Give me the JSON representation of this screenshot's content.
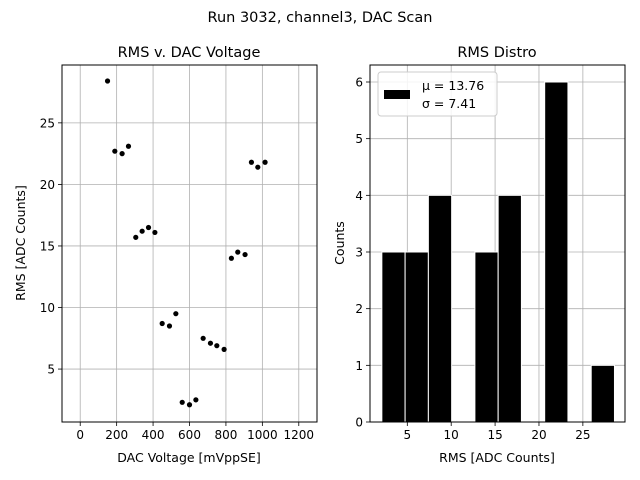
{
  "figure_title": "Run 3032, channel3, DAC Scan",
  "chart_data": [
    {
      "type": "scatter",
      "title": "RMS v. DAC Voltage",
      "xlabel": "DAC Voltage [mVppSE]",
      "ylabel": "RMS [ADC Counts]",
      "xlim": [
        -100,
        1300
      ],
      "ylim": [
        0.7,
        29.7
      ],
      "xticks": [
        0,
        200,
        400,
        600,
        800,
        1000,
        1200
      ],
      "yticks": [
        5,
        10,
        15,
        20,
        25
      ],
      "grid": true,
      "marker_color": "#000000",
      "points": [
        {
          "x": 150,
          "y": 28.4
        },
        {
          "x": 190,
          "y": 22.7
        },
        {
          "x": 230,
          "y": 22.5
        },
        {
          "x": 265,
          "y": 23.1
        },
        {
          "x": 305,
          "y": 15.7
        },
        {
          "x": 340,
          "y": 16.2
        },
        {
          "x": 375,
          "y": 16.5
        },
        {
          "x": 410,
          "y": 16.1
        },
        {
          "x": 450,
          "y": 8.7
        },
        {
          "x": 490,
          "y": 8.5
        },
        {
          "x": 525,
          "y": 9.5
        },
        {
          "x": 560,
          "y": 2.3
        },
        {
          "x": 600,
          "y": 2.1
        },
        {
          "x": 635,
          "y": 2.5
        },
        {
          "x": 675,
          "y": 7.5
        },
        {
          "x": 715,
          "y": 7.1
        },
        {
          "x": 750,
          "y": 6.9
        },
        {
          "x": 790,
          "y": 6.6
        },
        {
          "x": 830,
          "y": 14.0
        },
        {
          "x": 865,
          "y": 14.5
        },
        {
          "x": 905,
          "y": 14.3
        },
        {
          "x": 940,
          "y": 21.8
        },
        {
          "x": 975,
          "y": 21.4
        },
        {
          "x": 1015,
          "y": 21.8
        }
      ]
    },
    {
      "type": "bar",
      "title": "RMS Distro",
      "xlabel": "RMS [ADC Counts]",
      "ylabel": "Counts",
      "xlim": [
        0.75,
        29.8
      ],
      "ylim": [
        0,
        6.3
      ],
      "xticks": [
        5,
        10,
        15,
        20,
        25
      ],
      "yticks": [
        0,
        1,
        2,
        3,
        4,
        5,
        6
      ],
      "grid": true,
      "bar_color": "#000000",
      "bins": [
        {
          "start": 2.1,
          "end": 4.75,
          "count": 3
        },
        {
          "start": 4.75,
          "end": 7.4,
          "count": 3
        },
        {
          "start": 7.4,
          "end": 10.05,
          "count": 4
        },
        {
          "start": 10.05,
          "end": 12.7,
          "count": 0
        },
        {
          "start": 12.7,
          "end": 15.35,
          "count": 3
        },
        {
          "start": 15.35,
          "end": 18.0,
          "count": 4
        },
        {
          "start": 18.0,
          "end": 20.65,
          "count": 0
        },
        {
          "start": 20.65,
          "end": 23.3,
          "count": 6
        },
        {
          "start": 23.3,
          "end": 25.95,
          "count": 0
        },
        {
          "start": 25.95,
          "end": 28.6,
          "count": 1
        }
      ],
      "legend": {
        "placement": "top-left",
        "line1": "μ = 13.76",
        "line2": "σ = 7.41"
      }
    }
  ]
}
